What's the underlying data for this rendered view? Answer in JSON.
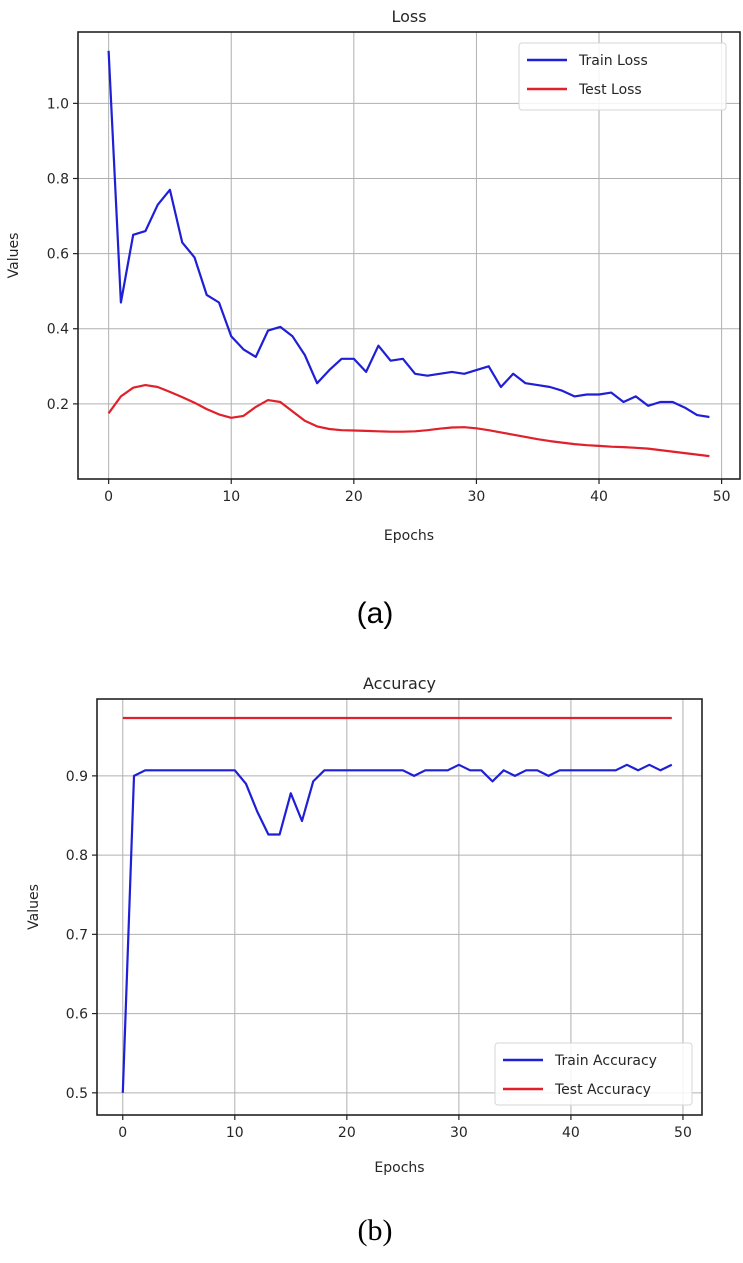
{
  "figure": {
    "caption_a": "(a)",
    "caption_b": "(b)"
  },
  "chart_data": [
    {
      "type": "line",
      "title": "Loss",
      "xlabel": "Epochs",
      "ylabel": "Values",
      "xlim": [
        -2.5,
        51.5
      ],
      "ylim": [
        0.0,
        1.19
      ],
      "xticks": [
        0,
        10,
        20,
        30,
        40,
        50
      ],
      "xtick_labels": [
        "0",
        "10",
        "20",
        "30",
        "40",
        "50"
      ],
      "yticks": [
        0.2,
        0.4,
        0.6,
        0.8,
        1.0
      ],
      "ytick_labels": [
        "0.2",
        "0.4",
        "0.6",
        "0.8",
        "1.0"
      ],
      "grid": true,
      "legend_position": "upper right",
      "x": [
        0,
        1,
        2,
        3,
        4,
        5,
        6,
        7,
        8,
        9,
        10,
        11,
        12,
        13,
        14,
        15,
        16,
        17,
        18,
        19,
        20,
        21,
        22,
        23,
        24,
        25,
        26,
        27,
        28,
        29,
        30,
        31,
        32,
        33,
        34,
        35,
        36,
        37,
        38,
        39,
        40,
        41,
        42,
        43,
        44,
        45,
        46,
        47,
        48,
        49
      ],
      "series": [
        {
          "name": "Train Loss",
          "color": "#1f1fd6",
          "values": [
            1.14,
            0.47,
            0.65,
            0.66,
            0.73,
            0.77,
            0.63,
            0.59,
            0.49,
            0.47,
            0.38,
            0.345,
            0.325,
            0.395,
            0.405,
            0.38,
            0.33,
            0.255,
            0.29,
            0.32,
            0.32,
            0.285,
            0.355,
            0.315,
            0.32,
            0.28,
            0.275,
            0.28,
            0.285,
            0.28,
            0.29,
            0.3,
            0.245,
            0.28,
            0.255,
            0.25,
            0.245,
            0.235,
            0.22,
            0.225,
            0.225,
            0.23,
            0.205,
            0.22,
            0.195,
            0.205,
            0.205,
            0.19,
            0.17,
            0.165
          ]
        },
        {
          "name": "Test Loss",
          "color": "#e0202a",
          "values": [
            0.175,
            0.22,
            0.243,
            0.25,
            0.245,
            0.232,
            0.218,
            0.203,
            0.186,
            0.172,
            0.163,
            0.168,
            0.192,
            0.21,
            0.205,
            0.18,
            0.155,
            0.14,
            0.133,
            0.13,
            0.129,
            0.128,
            0.127,
            0.126,
            0.126,
            0.127,
            0.13,
            0.134,
            0.137,
            0.138,
            0.135,
            0.13,
            0.124,
            0.118,
            0.112,
            0.106,
            0.101,
            0.097,
            0.093,
            0.09,
            0.088,
            0.086,
            0.085,
            0.083,
            0.081,
            0.077,
            0.073,
            0.069,
            0.065,
            0.061
          ]
        }
      ]
    },
    {
      "type": "line",
      "title": "Accuracy",
      "xlabel": "Epochs",
      "ylabel": "Values",
      "xlim": [
        -2.3,
        51.7
      ],
      "ylim": [
        0.472,
        0.997
      ],
      "xticks": [
        0,
        10,
        20,
        30,
        40,
        50
      ],
      "xtick_labels": [
        "0",
        "10",
        "20",
        "30",
        "40",
        "50"
      ],
      "yticks": [
        0.5,
        0.6,
        0.7,
        0.8,
        0.9
      ],
      "ytick_labels": [
        "0.5",
        "0.6",
        "0.7",
        "0.8",
        "0.9"
      ],
      "grid": true,
      "legend_position": "lower right",
      "x": [
        0,
        1,
        2,
        3,
        4,
        5,
        6,
        7,
        8,
        9,
        10,
        11,
        12,
        13,
        14,
        15,
        16,
        17,
        18,
        19,
        20,
        21,
        22,
        23,
        24,
        25,
        26,
        27,
        28,
        29,
        30,
        31,
        32,
        33,
        34,
        35,
        36,
        37,
        38,
        39,
        40,
        41,
        42,
        43,
        44,
        45,
        46,
        47,
        48,
        49
      ],
      "series": [
        {
          "name": "Train Accuracy",
          "color": "#1f1fd6",
          "values": [
            0.5,
            0.9,
            0.907,
            0.907,
            0.907,
            0.907,
            0.907,
            0.907,
            0.907,
            0.907,
            0.907,
            0.89,
            0.855,
            0.826,
            0.826,
            0.878,
            0.843,
            0.893,
            0.907,
            0.907,
            0.907,
            0.907,
            0.907,
            0.907,
            0.907,
            0.907,
            0.9,
            0.907,
            0.907,
            0.907,
            0.914,
            0.907,
            0.907,
            0.893,
            0.907,
            0.9,
            0.907,
            0.907,
            0.9,
            0.907,
            0.907,
            0.907,
            0.907,
            0.907,
            0.907,
            0.914,
            0.907,
            0.914,
            0.907,
            0.914
          ]
        },
        {
          "name": "Test Accuracy",
          "color": "#e0202a",
          "values": [
            0.973,
            0.973,
            0.973,
            0.973,
            0.973,
            0.973,
            0.973,
            0.973,
            0.973,
            0.973,
            0.973,
            0.973,
            0.973,
            0.973,
            0.973,
            0.973,
            0.973,
            0.973,
            0.973,
            0.973,
            0.973,
            0.973,
            0.973,
            0.973,
            0.973,
            0.973,
            0.973,
            0.973,
            0.973,
            0.973,
            0.973,
            0.973,
            0.973,
            0.973,
            0.973,
            0.973,
            0.973,
            0.973,
            0.973,
            0.973,
            0.973,
            0.973,
            0.973,
            0.973,
            0.973,
            0.973,
            0.973,
            0.973,
            0.973,
            0.973
          ]
        }
      ]
    }
  ]
}
